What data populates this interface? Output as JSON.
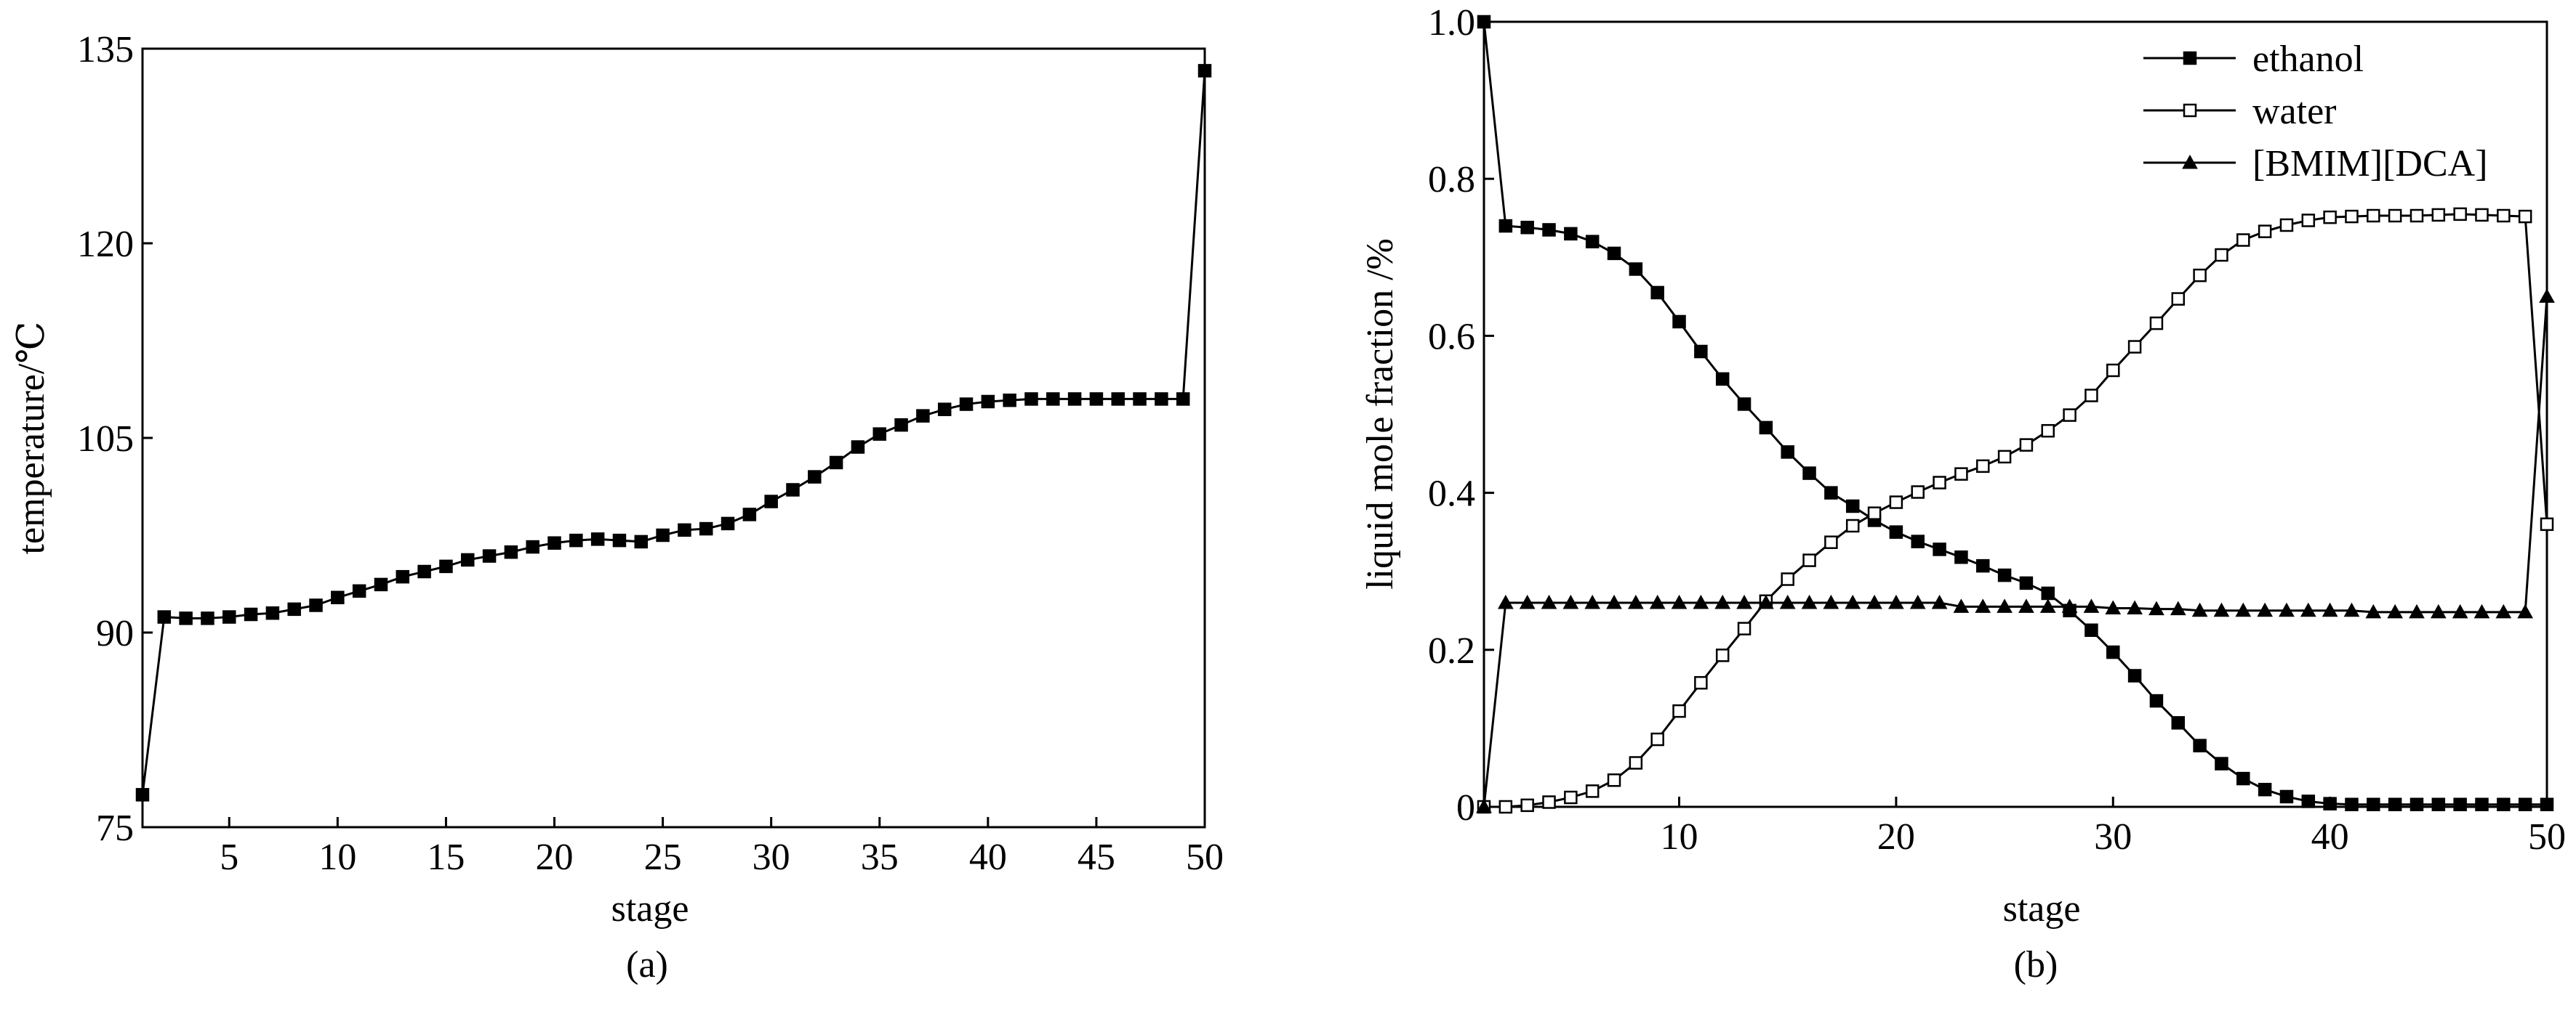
{
  "chart_data": [
    {
      "panel": "(a)",
      "type": "line",
      "xlabel": "stage",
      "ylabel": "temperature/℃",
      "xlim": [
        1,
        50
      ],
      "ylim": [
        75,
        135
      ],
      "xticks": [
        5,
        10,
        15,
        20,
        25,
        30,
        35,
        40,
        45,
        50
      ],
      "yticks": [
        75,
        90,
        105,
        120,
        135
      ],
      "grid": false,
      "series": [
        {
          "marker": "filled-square",
          "x": [
            1,
            2,
            3,
            4,
            5,
            6,
            7,
            8,
            9,
            10,
            11,
            12,
            13,
            14,
            15,
            16,
            17,
            18,
            19,
            20,
            21,
            22,
            23,
            24,
            25,
            26,
            27,
            28,
            29,
            30,
            31,
            32,
            33,
            34,
            35,
            36,
            37,
            38,
            39,
            40,
            41,
            42,
            43,
            44,
            45,
            46,
            47,
            48,
            49,
            50
          ],
          "y": [
            77.5,
            91.2,
            91.1,
            91.1,
            91.2,
            91.4,
            91.5,
            91.8,
            92.1,
            92.7,
            93.2,
            93.7,
            94.3,
            94.7,
            95.1,
            95.6,
            95.9,
            96.2,
            96.6,
            96.9,
            97.1,
            97.2,
            97.1,
            97.0,
            97.5,
            97.9,
            98.0,
            98.4,
            99.1,
            100.1,
            101.0,
            102.0,
            103.1,
            104.3,
            105.3,
            106.0,
            106.7,
            107.2,
            107.6,
            107.8,
            107.9,
            108.0,
            108.0,
            108.0,
            108.0,
            108.0,
            108.0,
            108.0,
            108.0,
            133.3
          ]
        }
      ]
    },
    {
      "panel": "(b)",
      "type": "line",
      "xlabel": "stage",
      "ylabel": "liquid mole fraction /%",
      "xlim": [
        1,
        50
      ],
      "ylim": [
        0,
        1.0
      ],
      "xticks": [
        10,
        20,
        30,
        40,
        50
      ],
      "yticks": [
        0,
        0.2,
        0.4,
        0.6,
        0.8,
        1.0
      ],
      "ytick_labels": [
        "0",
        "0.2",
        "0.4",
        "0.6",
        "0.8",
        "1.0"
      ],
      "grid": false,
      "legend_position": "top-right",
      "series": [
        {
          "name": "ethanol",
          "marker": "filled-square",
          "x": [
            1,
            2,
            3,
            4,
            5,
            6,
            7,
            8,
            9,
            10,
            11,
            12,
            13,
            14,
            15,
            16,
            17,
            18,
            19,
            20,
            21,
            22,
            23,
            24,
            25,
            26,
            27,
            28,
            29,
            30,
            31,
            32,
            33,
            34,
            35,
            36,
            37,
            38,
            39,
            40,
            41,
            42,
            43,
            44,
            45,
            46,
            47,
            48,
            49,
            50
          ],
          "y": [
            1.0,
            0.74,
            0.738,
            0.735,
            0.73,
            0.72,
            0.705,
            0.685,
            0.655,
            0.618,
            0.58,
            0.545,
            0.513,
            0.483,
            0.452,
            0.425,
            0.4,
            0.383,
            0.365,
            0.35,
            0.338,
            0.328,
            0.318,
            0.307,
            0.295,
            0.285,
            0.272,
            0.25,
            0.225,
            0.197,
            0.167,
            0.135,
            0.107,
            0.078,
            0.055,
            0.036,
            0.022,
            0.013,
            0.007,
            0.004,
            0.003,
            0.003,
            0.003,
            0.003,
            0.003,
            0.003,
            0.003,
            0.003,
            0.003,
            0.003
          ]
        },
        {
          "name": "water",
          "marker": "open-square",
          "x": [
            1,
            2,
            3,
            4,
            5,
            6,
            7,
            8,
            9,
            10,
            11,
            12,
            13,
            14,
            15,
            16,
            17,
            18,
            19,
            20,
            21,
            22,
            23,
            24,
            25,
            26,
            27,
            28,
            29,
            30,
            31,
            32,
            33,
            34,
            35,
            36,
            37,
            38,
            39,
            40,
            41,
            42,
            43,
            44,
            45,
            46,
            47,
            48,
            49,
            50
          ],
          "y": [
            0.0,
            0.0,
            0.002,
            0.006,
            0.012,
            0.02,
            0.034,
            0.056,
            0.086,
            0.122,
            0.158,
            0.193,
            0.227,
            0.262,
            0.29,
            0.314,
            0.337,
            0.358,
            0.374,
            0.388,
            0.401,
            0.413,
            0.424,
            0.434,
            0.446,
            0.461,
            0.479,
            0.499,
            0.524,
            0.556,
            0.586,
            0.616,
            0.647,
            0.677,
            0.703,
            0.722,
            0.733,
            0.741,
            0.747,
            0.751,
            0.752,
            0.753,
            0.753,
            0.753,
            0.754,
            0.755,
            0.754,
            0.753,
            0.752,
            0.36
          ]
        },
        {
          "name": "[BMIM][DCA]",
          "marker": "filled-triangle",
          "x": [
            1,
            2,
            3,
            4,
            5,
            6,
            7,
            8,
            9,
            10,
            11,
            12,
            13,
            14,
            15,
            16,
            17,
            18,
            19,
            20,
            21,
            22,
            23,
            24,
            25,
            26,
            27,
            28,
            29,
            30,
            31,
            32,
            33,
            34,
            35,
            36,
            37,
            38,
            39,
            40,
            41,
            42,
            43,
            44,
            45,
            46,
            47,
            48,
            49,
            50
          ],
          "y": [
            0.0,
            0.26,
            0.26,
            0.26,
            0.26,
            0.26,
            0.26,
            0.26,
            0.26,
            0.26,
            0.26,
            0.26,
            0.26,
            0.26,
            0.26,
            0.26,
            0.26,
            0.26,
            0.26,
            0.26,
            0.26,
            0.26,
            0.255,
            0.255,
            0.255,
            0.255,
            0.255,
            0.255,
            0.255,
            0.253,
            0.253,
            0.252,
            0.252,
            0.25,
            0.25,
            0.25,
            0.25,
            0.25,
            0.25,
            0.25,
            0.25,
            0.248,
            0.248,
            0.248,
            0.248,
            0.248,
            0.248,
            0.248,
            0.248,
            0.65
          ]
        }
      ]
    }
  ]
}
